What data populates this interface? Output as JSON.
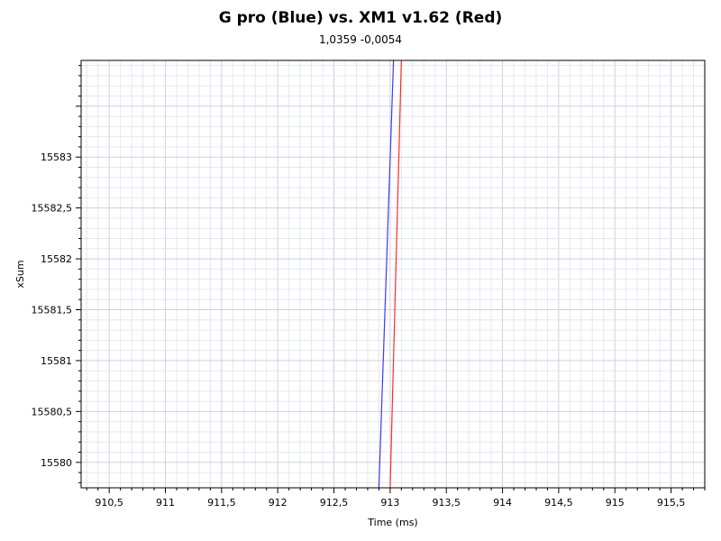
{
  "chart_data": {
    "type": "line",
    "title": "G pro (Blue) vs. XM1 v1.62 (Red)",
    "subtitle": "1,0359 -0,0054",
    "xlabel": "Time (ms)",
    "ylabel": "xSum",
    "xlim": [
      910.25,
      915.8
    ],
    "ylim": [
      15579.75,
      15583.95
    ],
    "x_ticks": [
      {
        "value": 910.5,
        "label": "910,5"
      },
      {
        "value": 911,
        "label": "911"
      },
      {
        "value": 911.5,
        "label": "911,5"
      },
      {
        "value": 912,
        "label": "912"
      },
      {
        "value": 912.5,
        "label": "912,5"
      },
      {
        "value": 913,
        "label": "913"
      },
      {
        "value": 913.5,
        "label": "913,5"
      },
      {
        "value": 914,
        "label": "914"
      },
      {
        "value": 914.5,
        "label": "914,5"
      },
      {
        "value": 915,
        "label": "915"
      },
      {
        "value": 915.5,
        "label": "915,5"
      }
    ],
    "y_ticks": [
      {
        "value": 15580,
        "label": "15580"
      },
      {
        "value": 15580.5,
        "label": "15580,5"
      },
      {
        "value": 15581,
        "label": "15581"
      },
      {
        "value": 15581.5,
        "label": "15581,5"
      },
      {
        "value": 15582,
        "label": "15582"
      },
      {
        "value": 15582.5,
        "label": "15582,5"
      },
      {
        "value": 15583,
        "label": "15583"
      }
    ],
    "grid": true,
    "series": [
      {
        "color": "#3a3aff",
        "x": [
          912.9,
          913.03
        ],
        "y": [
          15579.75,
          15583.95
        ]
      },
      {
        "color": "#ff2a2a",
        "x": [
          913.0,
          913.1
        ],
        "y": [
          15579.75,
          15583.95
        ]
      }
    ]
  }
}
